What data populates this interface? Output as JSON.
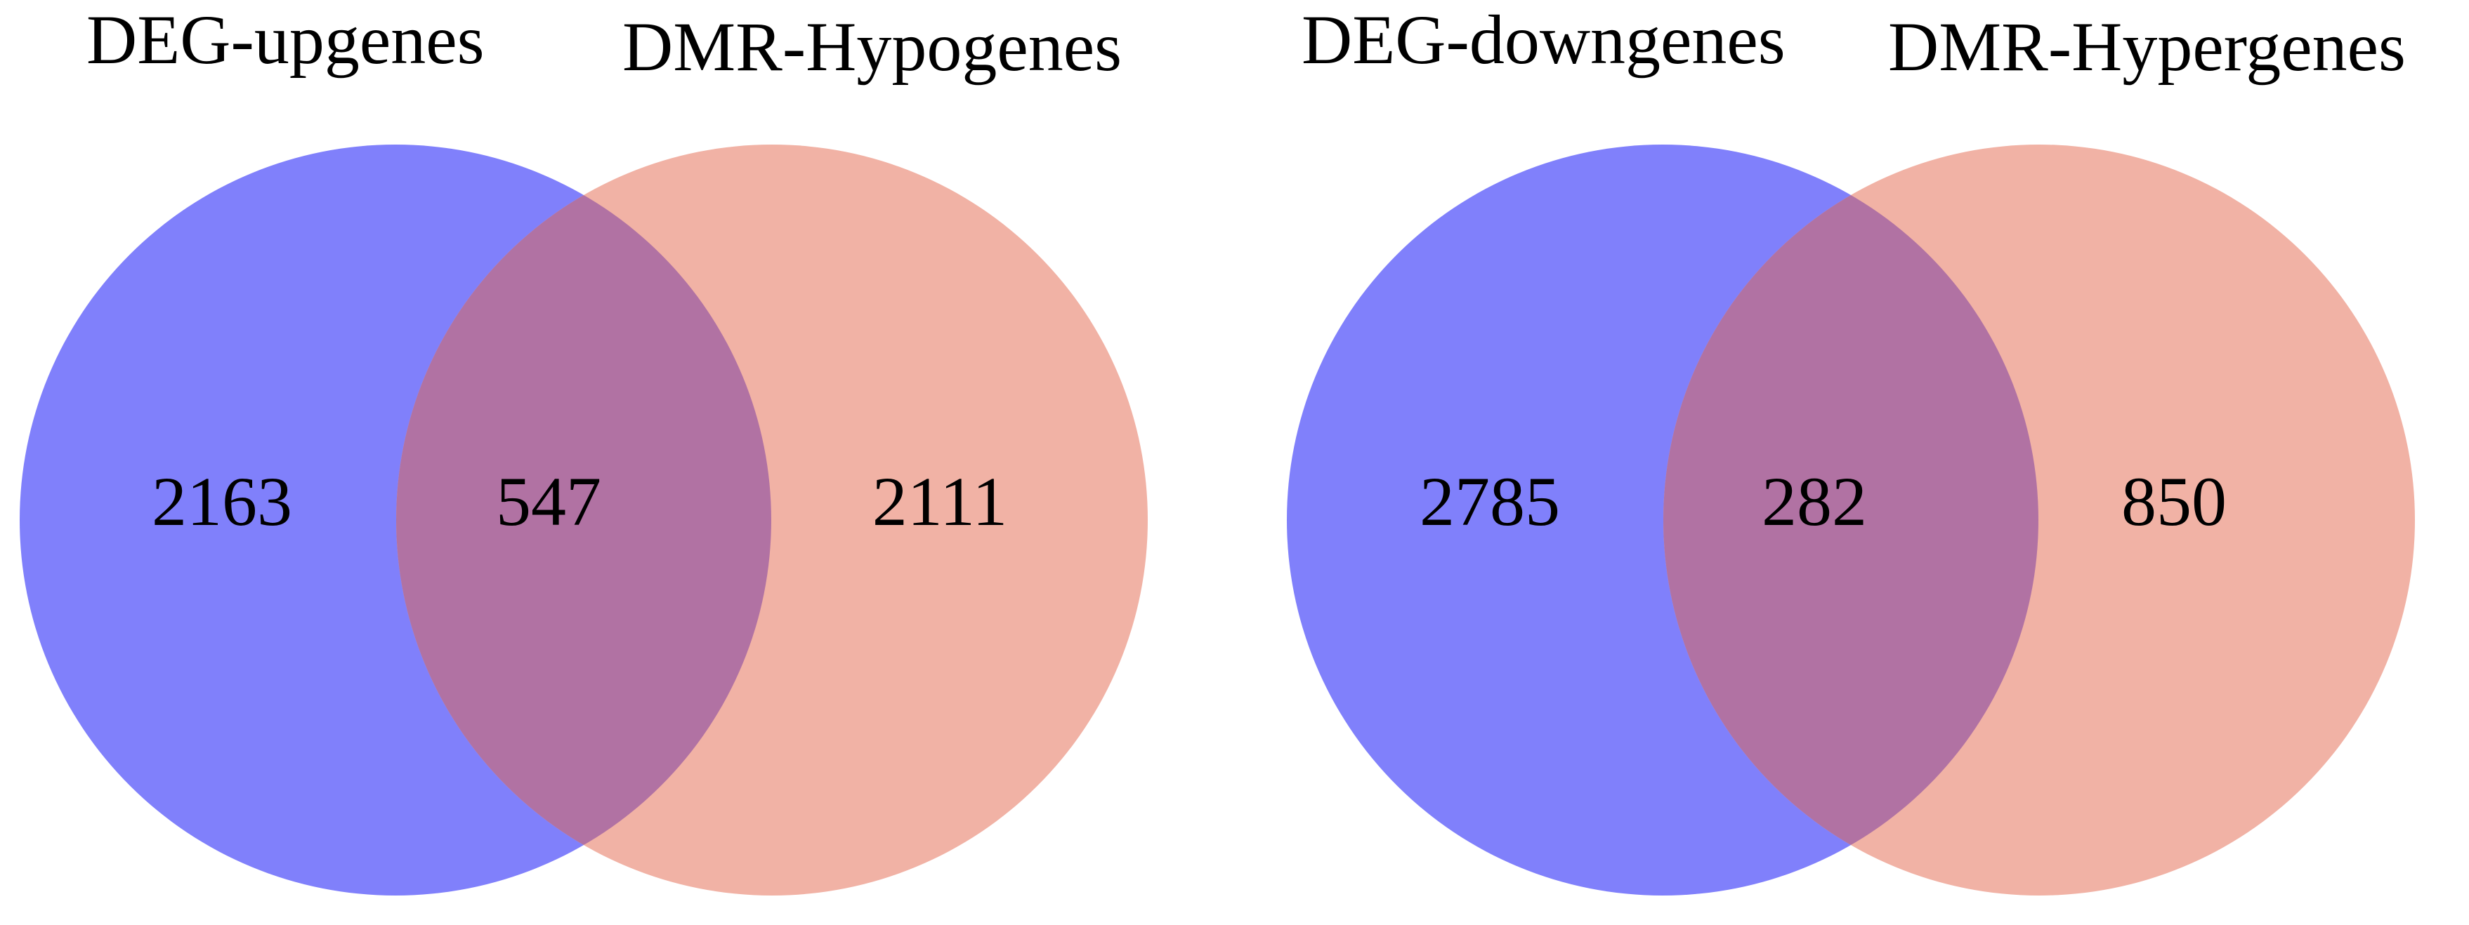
{
  "colors": {
    "left_circle": "#8080fb",
    "right_circle": "#f1b2a5",
    "overlap": "#b172a3",
    "text": "#000000",
    "background": "#ffffff"
  },
  "diagrams": [
    {
      "left_set": {
        "name": "DEG-upgenes",
        "only_count": "2163"
      },
      "right_set": {
        "name": "DMR-Hypogenes",
        "only_count": "2111"
      },
      "overlap_count": "547"
    },
    {
      "left_set": {
        "name": "DEG-downgenes",
        "only_count": "2785"
      },
      "right_set": {
        "name": "DMR-Hypergenes",
        "only_count": "850"
      },
      "overlap_count": "282"
    }
  ]
}
